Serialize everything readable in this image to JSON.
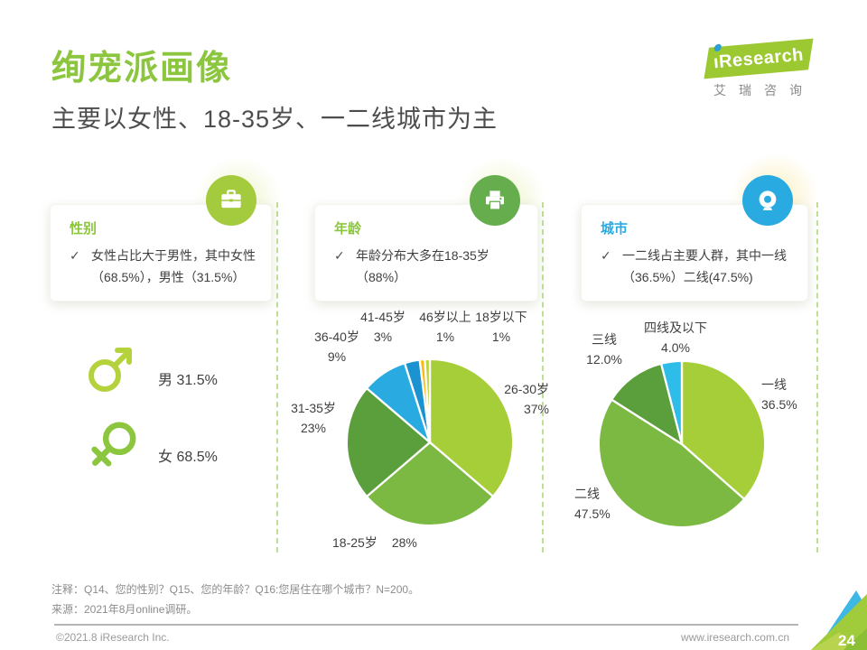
{
  "page": {
    "title": "绚宠派画像",
    "subtitle": "主要以女性、18-35岁、一二线城市为主",
    "page_number": "24",
    "copyright": "©2021.8 iResearch Inc.",
    "website": "www.iresearch.com.cn",
    "note": "注释：Q14、您的性别？Q15、您的年龄？Q16:您居住在哪个城市？N=200。",
    "source": "来源：2021年8月online调研。"
  },
  "logo": {
    "brand": "Research",
    "brand_cn": "艾瑞咨询"
  },
  "panels": [
    {
      "label": "性别",
      "icon": "briefcase-icon",
      "check": "✓",
      "lines": [
        "女性占比大于男性，其中女性",
        "（68.5%），男性（31.5%）"
      ]
    },
    {
      "label": "年龄",
      "icon": "printer-icon",
      "check": "✓",
      "lines": [
        "年龄分布大多在18-35岁",
        "（88%）"
      ]
    },
    {
      "label": "城市",
      "icon": "webcam-icon",
      "check": "✓",
      "lines": [
        "一二线占主要人群，其中一线",
        "（36.5%）二线(47.5%)"
      ]
    }
  ],
  "gender": {
    "male": "男 31.5%",
    "female": "女 68.5%"
  },
  "chart_data": [
    {
      "type": "pie",
      "title": "年龄分布",
      "labels": [
        "26-30岁",
        "18-25岁",
        "31-35岁",
        "36-40岁",
        "41-45岁",
        "46岁以上",
        "18岁以下"
      ],
      "values": [
        37,
        28,
        23,
        9,
        3,
        1,
        1
      ],
      "value_labels": [
        "37%",
        "28%",
        "23%",
        "9%",
        "3%",
        "1%",
        "1%"
      ],
      "colors": [
        "#a6ce39",
        "#7cb942",
        "#5b9e3c",
        "#29abe2",
        "#1b93d1",
        "#fdb913",
        "#bcd63e"
      ],
      "start_angle": "12-oclock",
      "direction": "clockwise",
      "labels_position": "outside",
      "legend": "none"
    },
    {
      "type": "pie",
      "title": "城市分布",
      "labels": [
        "一线",
        "二线",
        "三线",
        "四线及以下"
      ],
      "values": [
        36.5,
        47.5,
        12.0,
        4.0
      ],
      "value_labels": [
        "36.5%",
        "47.5%",
        "12.0%",
        "4.0%"
      ],
      "colors": [
        "#a6ce39",
        "#7cb942",
        "#5b9e3c",
        "#2ebde9"
      ],
      "start_angle": "12-oclock",
      "direction": "clockwise",
      "labels_position": "outside",
      "legend": "none"
    }
  ],
  "accent_colors": {
    "green": "#8cc63f",
    "cyan": "#29abe2",
    "yellow": "#fdb913"
  }
}
